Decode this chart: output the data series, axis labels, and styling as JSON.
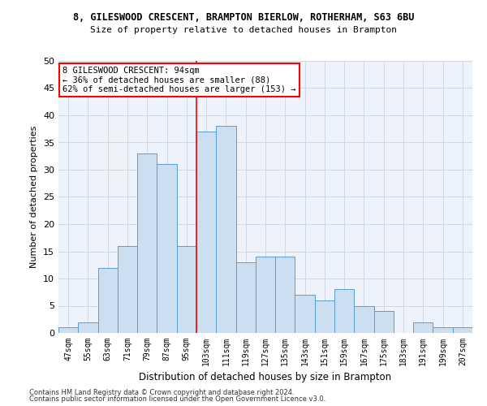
{
  "title1": "8, GILESWOOD CRESCENT, BRAMPTON BIERLOW, ROTHERHAM, S63 6BU",
  "title2": "Size of property relative to detached houses in Brampton",
  "xlabel": "Distribution of detached houses by size in Brampton",
  "ylabel": "Number of detached properties",
  "categories": [
    "47sqm",
    "55sqm",
    "63sqm",
    "71sqm",
    "79sqm",
    "87sqm",
    "95sqm",
    "103sqm",
    "111sqm",
    "119sqm",
    "127sqm",
    "135sqm",
    "143sqm",
    "151sqm",
    "159sqm",
    "167sqm",
    "175sqm",
    "183sqm",
    "191sqm",
    "199sqm",
    "207sqm"
  ],
  "values": [
    1,
    2,
    12,
    16,
    33,
    31,
    16,
    37,
    38,
    13,
    14,
    14,
    7,
    6,
    8,
    5,
    4,
    0,
    2,
    1,
    1
  ],
  "bar_color": "#ccdff0",
  "bar_edge_color": "#5b9bd5",
  "annotation_line1": "8 GILESWOOD CRESCENT: 94sqm",
  "annotation_line2": "← 36% of detached houses are smaller (88)",
  "annotation_line3": "62% of semi-detached houses are larger (153) →",
  "annotation_box_color": "white",
  "annotation_box_edge": "red",
  "vline_color": "red",
  "vline_x": 6.5,
  "ylim": [
    0,
    50
  ],
  "yticks": [
    0,
    5,
    10,
    15,
    20,
    25,
    30,
    35,
    40,
    45,
    50
  ],
  "grid_color": "#d0d8e8",
  "footer1": "Contains HM Land Registry data © Crown copyright and database right 2024.",
  "footer2": "Contains public sector information licensed under the Open Government Licence v3.0.",
  "bg_color": "#eef2fb"
}
